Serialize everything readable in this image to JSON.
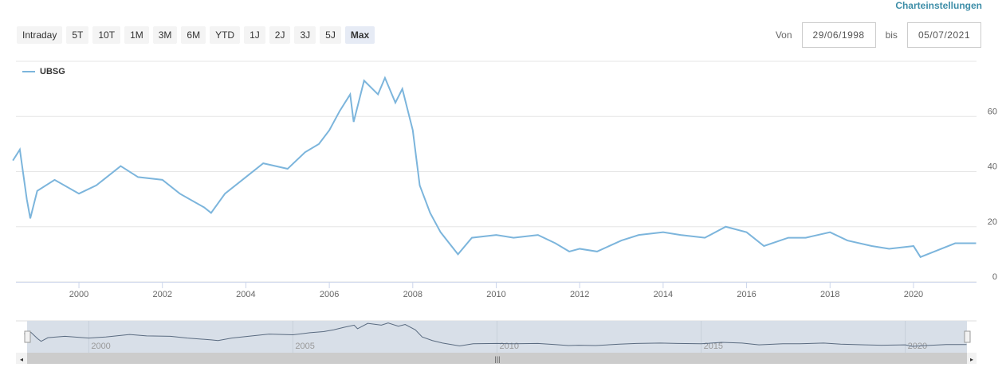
{
  "header": {
    "settings_link": "Charteinstellungen"
  },
  "range_buttons": [
    "Intraday",
    "5T",
    "10T",
    "1M",
    "3M",
    "6M",
    "YTD",
    "1J",
    "2J",
    "3J",
    "5J",
    "Max"
  ],
  "active_range": "Max",
  "date_range": {
    "from_label": "Von",
    "from": "29/06/1998",
    "to_label": "bis",
    "to": "05/07/2021"
  },
  "colors": {
    "series": "#7cb5dc",
    "navigator_line": "#5a6b80",
    "navigator_fill": "#d8dfe8",
    "accent": "#3e8ea8"
  },
  "chart_data": {
    "type": "line",
    "legend": "top-left",
    "grid": true,
    "ylim": [
      0,
      80
    ],
    "yticks": [
      "0",
      "20",
      "40",
      "60"
    ],
    "xticks": [
      "2000",
      "2002",
      "2004",
      "2006",
      "2008",
      "2010",
      "2012",
      "2014",
      "2016",
      "2018",
      "2020"
    ],
    "navigator_ticks": [
      "2000",
      "2005",
      "2010",
      "2015",
      "2020"
    ],
    "series": [
      {
        "name": "UBSG",
        "x": [
          "1998-06",
          "1998-08",
          "1998-10",
          "1998-11",
          "1999-01",
          "1999-06",
          "2000-01",
          "2000-06",
          "2001-01",
          "2001-06",
          "2002-01",
          "2002-06",
          "2003-01",
          "2003-03",
          "2003-07",
          "2004-01",
          "2004-06",
          "2005-01",
          "2005-06",
          "2005-10",
          "2006-01",
          "2006-04",
          "2006-07",
          "2006-08",
          "2006-11",
          "2007-03",
          "2007-05",
          "2007-08",
          "2007-10",
          "2008-01",
          "2008-03",
          "2008-06",
          "2008-09",
          "2009-02",
          "2009-06",
          "2010-01",
          "2010-06",
          "2011-01",
          "2011-06",
          "2011-10",
          "2012-01",
          "2012-06",
          "2013-01",
          "2013-06",
          "2014-01",
          "2014-06",
          "2015-01",
          "2015-07",
          "2016-01",
          "2016-06",
          "2017-01",
          "2017-06",
          "2018-01",
          "2018-06",
          "2019-01",
          "2019-06",
          "2020-01",
          "2020-03",
          "2020-07",
          "2021-01",
          "2021-07"
        ],
        "y": [
          44,
          48,
          30,
          23,
          33,
          37,
          32,
          35,
          42,
          38,
          37,
          32,
          27,
          25,
          32,
          38,
          43,
          41,
          47,
          50,
          55,
          62,
          68,
          58,
          73,
          68,
          74,
          65,
          70,
          55,
          35,
          25,
          18,
          10,
          16,
          17,
          16,
          17,
          14,
          11,
          12,
          11,
          15,
          17,
          18,
          17,
          16,
          20,
          18,
          13,
          16,
          16,
          18,
          15,
          13,
          12,
          13,
          9,
          11,
          14,
          14
        ]
      }
    ]
  }
}
